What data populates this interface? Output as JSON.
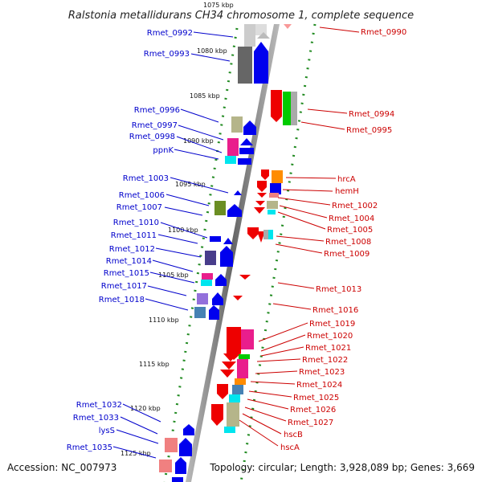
{
  "title": "Ralstonia metallidurans CH34 chromosome 1, complete sequence",
  "footer": {
    "accession": "Accession: NC_007973",
    "stats": "Topology: circular; Length: 3,928,089 bp; Genes: 3,669"
  },
  "colors": {
    "forward_strand": "#0000ee",
    "reverse_strand": "#ee0000",
    "left_label": "#0000cc",
    "right_label": "#cc0000",
    "dotted_track": "#228b22",
    "axis": "#888888"
  },
  "ticks": [
    "1075 kbp",
    "1080 kbp",
    "1085 kbp",
    "1090 kbp",
    "1095 kbp",
    "1100 kbp",
    "1105 kbp",
    "1110 kbp",
    "1115 kbp",
    "1120 kbp",
    "1125 kbp"
  ],
  "left_labels": [
    "Rmet_0992",
    "Rmet_0993",
    "Rmet_0996",
    "Rmet_0997",
    "Rmet_0998",
    "ppnK",
    "Rmet_1003",
    "Rmet_1006",
    "Rmet_1007",
    "Rmet_1010",
    "Rmet_1011",
    "Rmet_1012",
    "Rmet_1014",
    "Rmet_1015",
    "Rmet_1017",
    "Rmet_1018",
    "Rmet_1032",
    "Rmet_1033",
    "lysS",
    "Rmet_1035"
  ],
  "right_labels": [
    "Rmet_0990",
    "Rmet_0994",
    "Rmet_0995",
    "hrcA",
    "hemH",
    "Rmet_1002",
    "Rmet_1004",
    "Rmet_1005",
    "Rmet_1008",
    "Rmet_1009",
    "Rmet_1013",
    "Rmet_1016",
    "Rmet_1019",
    "Rmet_1020",
    "Rmet_1021",
    "Rmet_1022",
    "Rmet_1023",
    "Rmet_1024",
    "Rmet_1025",
    "Rmet_1026",
    "Rmet_1027",
    "hscB",
    "hscA"
  ]
}
